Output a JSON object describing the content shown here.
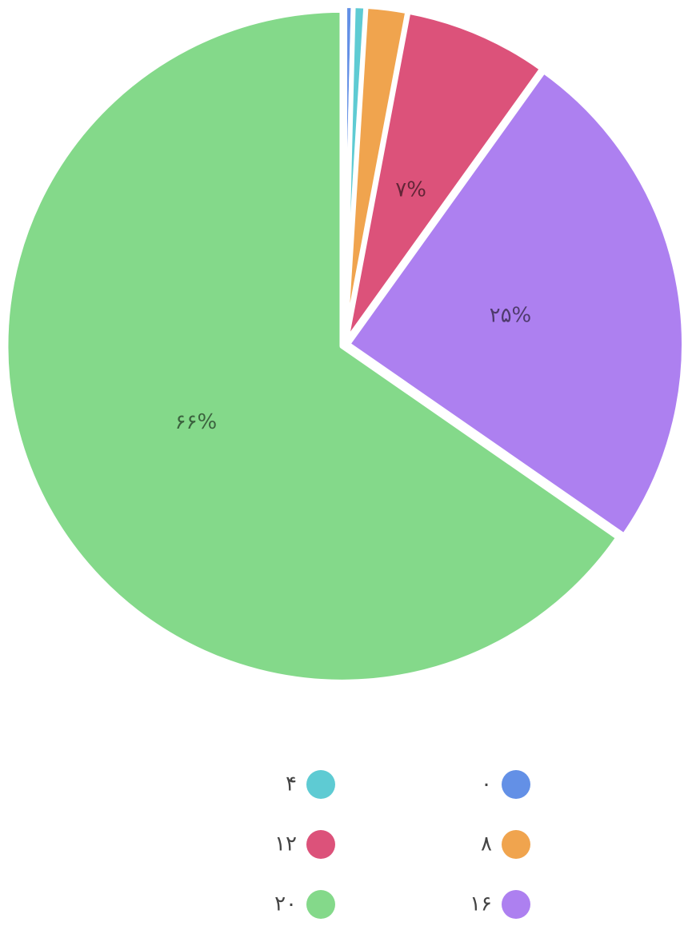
{
  "chart_data": {
    "type": "pie",
    "categories": [
      "۰",
      "۴",
      "۸",
      "۱۲",
      "۱۶",
      "۲۰"
    ],
    "values": [
      0.4,
      0.6,
      2,
      7,
      25,
      66
    ],
    "value_labels": [
      null,
      null,
      null,
      "۷%",
      "۲۵%",
      "۶۶%"
    ],
    "colors": [
      "#6390e6",
      "#5ecbd3",
      "#f0a44e",
      "#dc527a",
      "#ad80f0",
      "#84d98a"
    ],
    "legend": "bottom"
  }
}
